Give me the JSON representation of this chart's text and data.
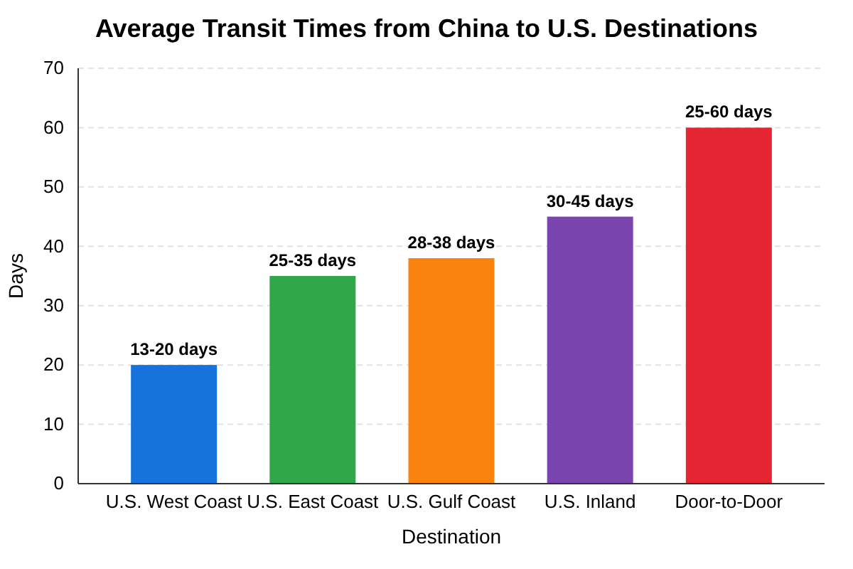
{
  "chart_data": {
    "type": "bar",
    "title": "Average Transit Times from China to U.S. Destinations",
    "xlabel": "Destination",
    "ylabel": "Days",
    "categories": [
      "U.S. West Coast",
      "U.S. East Coast",
      "U.S. Gulf Coast",
      "U.S. Inland",
      "Door-to-Door"
    ],
    "values": [
      20,
      35,
      38,
      45,
      60
    ],
    "colors": [
      "#1673dc",
      "#30a84a",
      "#fa830f",
      "#7b45b0",
      "#e62532"
    ],
    "value_labels": [
      "13-20 days",
      "25-35 days",
      "28-38 days",
      "30-45 days",
      "25-60 days"
    ],
    "ylim": [
      0,
      70
    ],
    "yticks": [
      0,
      10,
      20,
      30,
      40,
      50,
      60,
      70
    ],
    "grid": "y"
  }
}
